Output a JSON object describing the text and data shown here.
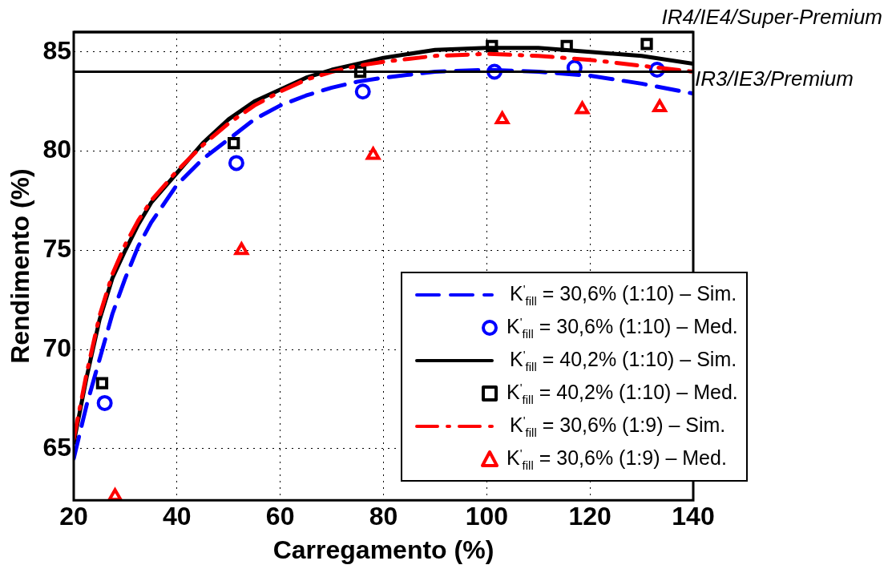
{
  "chart_data": {
    "type": "line",
    "xlabel": "Carregamento (%)",
    "ylabel": "Rendimento (%)",
    "xlim": [
      20,
      140
    ],
    "xticks": [
      20,
      40,
      60,
      80,
      100,
      120,
      140
    ],
    "ylim": [
      62.4,
      86
    ],
    "yticks": [
      65,
      70,
      75,
      80,
      85
    ],
    "grid": true,
    "legend": "bottom right",
    "series": [
      {
        "name": "K$^{'}$$_{fill}$ = 30,6% (1:10) – Sim.",
        "type": "line",
        "line_style": "dashed",
        "marker": "none",
        "color": "#0000ff",
        "x": [
          20,
          22.5,
          25,
          27.5,
          30,
          32.5,
          35,
          40,
          45,
          50,
          55,
          60,
          65,
          70,
          75,
          80,
          90,
          100,
          110,
          120,
          130,
          140
        ],
        "values": [
          64.5,
          67.2,
          69.5,
          71.8,
          73.6,
          75.2,
          76.4,
          78.3,
          79.6,
          80.6,
          81.6,
          82.3,
          82.8,
          83.2,
          83.5,
          83.7,
          84.0,
          84.1,
          84.0,
          83.8,
          83.4,
          82.9
        ]
      },
      {
        "name": "K$^{'}$$_{fill}$ = 30,6% (1:10) – Med.",
        "type": "scatter",
        "marker": "circle",
        "color": "#0000ff",
        "x": [
          26,
          51.5,
          76,
          101.5,
          117,
          133
        ],
        "values": [
          67.3,
          79.4,
          83.0,
          84.0,
          84.2,
          84.1
        ]
      },
      {
        "name": "K$^{'}$$_{fill}$ = 40,2% (1:10) – Sim.",
        "type": "line",
        "line_style": "solid",
        "marker": "none",
        "color": "#000000",
        "x": [
          20,
          22.5,
          25,
          27.5,
          30,
          32.5,
          35,
          40,
          45,
          50,
          55,
          60,
          65,
          70,
          75,
          80,
          90,
          100,
          110,
          120,
          130,
          140
        ],
        "values": [
          65.3,
          68.6,
          71.5,
          73.6,
          75.0,
          76.3,
          77.4,
          78.9,
          80.4,
          81.6,
          82.5,
          83.1,
          83.7,
          84.1,
          84.4,
          84.7,
          85.1,
          85.2,
          85.2,
          85.0,
          84.8,
          84.4
        ]
      },
      {
        "name": "K$^{'}$$_{fill}$ = 40,2% (1:10) – Med.",
        "type": "scatter",
        "marker": "square",
        "color": "#000000",
        "x": [
          25.5,
          51,
          75.5,
          101,
          115.5,
          131
        ],
        "values": [
          68.3,
          80.4,
          84.0,
          85.3,
          85.3,
          85.4
        ]
      },
      {
        "name": "K$^{'}$$_{fill}$ = 30,6% (1:9) – Sim.",
        "type": "line",
        "line_style": "dashdot",
        "marker": "none",
        "color": "#ff0000",
        "x": [
          20,
          22.5,
          25,
          27.5,
          30,
          32.5,
          35,
          40,
          45,
          50,
          55,
          60,
          65,
          70,
          75,
          80,
          90,
          100,
          110,
          120,
          130,
          140
        ],
        "values": [
          65.5,
          68.8,
          71.7,
          73.8,
          75.3,
          76.5,
          77.5,
          79.0,
          80.3,
          81.4,
          82.3,
          83.0,
          83.6,
          84.0,
          84.3,
          84.5,
          84.8,
          84.9,
          84.8,
          84.6,
          84.3,
          84.0
        ]
      },
      {
        "name": "K$^{'}$$_{fill}$ = 30,6% (1:9) – Med.",
        "type": "scatter",
        "marker": "triangle",
        "color": "#ff0000",
        "x": [
          28,
          52.5,
          78,
          103,
          118.5,
          133.5
        ],
        "values": [
          62.6,
          75.0,
          79.8,
          81.6,
          82.1,
          82.2
        ]
      }
    ],
    "ref_lines": [
      {
        "axis": "y",
        "value": 86,
        "label": "IR4/IE4/Super-Premium",
        "color": "#000000"
      },
      {
        "axis": "y",
        "value": 84,
        "label": "IR3/IE3/Premium",
        "color": "#000000"
      }
    ]
  }
}
